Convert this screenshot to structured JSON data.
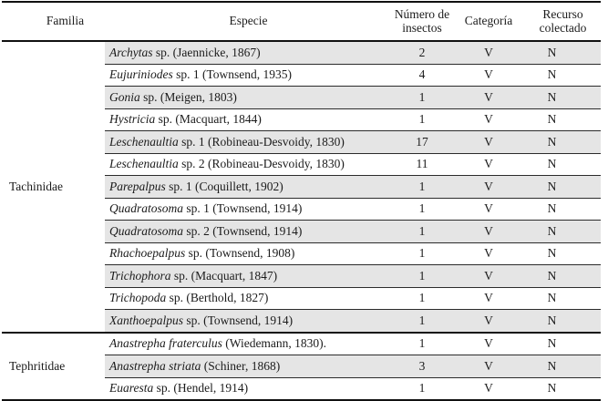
{
  "table": {
    "headers": {
      "familia": "Familia",
      "especie": "Especie",
      "numero": "Número de insectos",
      "categoria": "Categoría",
      "recurso": "Recurso colectado"
    },
    "colors": {
      "stripe": "#e5e5e5",
      "rule": "#111111"
    },
    "groups": [
      {
        "family": "Tachinidae",
        "rows": [
          {
            "it": "Archytas",
            "rest": " sp. (Jaennicke, 1867)",
            "n": "2",
            "cat": "V",
            "rec": "N"
          },
          {
            "it": "Eujuriniodes",
            "rest": " sp. 1 (Townsend, 1935)",
            "n": "4",
            "cat": "V",
            "rec": "N"
          },
          {
            "it": "Gonia",
            "rest": " sp. (Meigen, 1803)",
            "n": "1",
            "cat": "V",
            "rec": "N"
          },
          {
            "it": "Hystricia",
            "rest": " sp. (Macquart, 1844)",
            "n": "1",
            "cat": "V",
            "rec": "N"
          },
          {
            "it": "Leschenaultia",
            "rest": " sp. 1 (Robineau-Desvoidy, 1830)",
            "n": "17",
            "cat": "V",
            "rec": "N"
          },
          {
            "it": "Leschenaultia",
            "rest": " sp. 2 (Robineau-Desvoidy, 1830)",
            "n": "11",
            "cat": "V",
            "rec": "N"
          },
          {
            "it": "Parepalpus",
            "rest": " sp. 1 (Coquillett, 1902)",
            "n": "1",
            "cat": "V",
            "rec": "N"
          },
          {
            "it": "Quadratosoma",
            "rest": " sp. 1 (Townsend, 1914)",
            "n": "1",
            "cat": "V",
            "rec": "N"
          },
          {
            "it": "Quadratosoma",
            "rest": " sp. 2 (Townsend, 1914)",
            "n": "1",
            "cat": "V",
            "rec": "N"
          },
          {
            "it": "Rhachoepalpus",
            "rest": " sp. (Townsend, 1908)",
            "n": "1",
            "cat": "V",
            "rec": "N"
          },
          {
            "it": "Trichophora",
            "rest": " sp. (Macquart, 1847)",
            "n": "1",
            "cat": "V",
            "rec": "N"
          },
          {
            "it": "Trichopoda",
            "rest": " sp. (Berthold, 1827)",
            "n": "1",
            "cat": "V",
            "rec": "N"
          },
          {
            "it": "Xanthoepalpus",
            "rest": " sp. (Townsend, 1914)",
            "n": "1",
            "cat": "V",
            "rec": "N"
          }
        ]
      },
      {
        "family": "Tephritidae",
        "rows": [
          {
            "it": "Anastrepha fraterculus",
            "rest": " (Wiedemann, 1830).",
            "n": "1",
            "cat": "V",
            "rec": "N"
          },
          {
            "it": "Anastrepha striata",
            "rest": " (Schiner, 1868)",
            "n": "3",
            "cat": "V",
            "rec": "N"
          },
          {
            "it": "Euaresta",
            "rest": " sp. (Hendel, 1914)",
            "n": "1",
            "cat": "V",
            "rec": "N"
          }
        ]
      }
    ]
  }
}
